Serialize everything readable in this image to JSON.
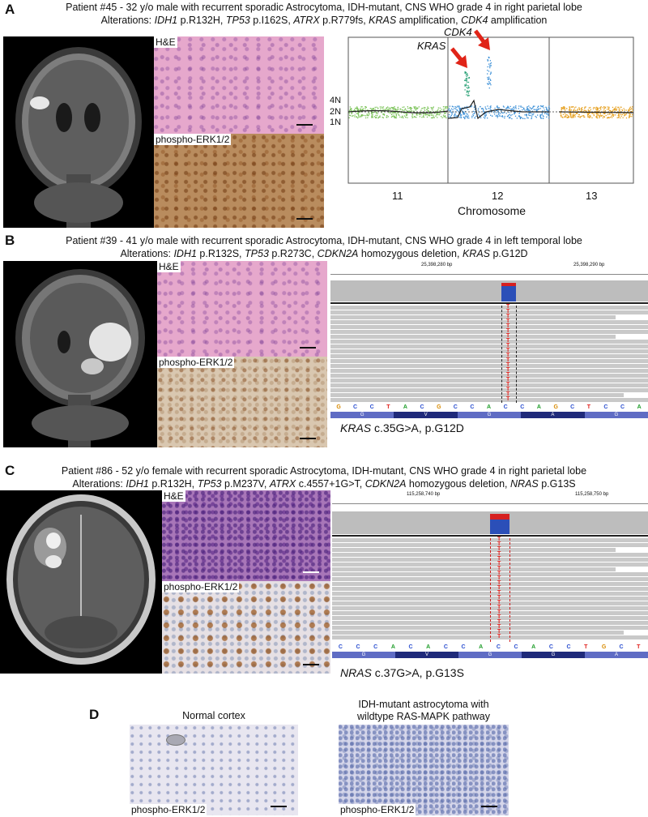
{
  "panelA": {
    "letter": "A",
    "title_line1": "Patient #45 - 32 y/o male with recurrent sporadic Astrocytoma, IDH-mutant, CNS WHO grade 4 in right parietal lobe",
    "alt_prefix": "Alterations: ",
    "alterations": [
      {
        "gene": "IDH1",
        "change": " p.R132H, "
      },
      {
        "gene": "TP53",
        "change": " p.I162S, "
      },
      {
        "gene": "ATRX",
        "change": " p.R779fs, "
      },
      {
        "gene": "KRAS",
        "change": " amplification, "
      },
      {
        "gene": "CDK4",
        "change": "  amplification"
      }
    ],
    "he_label": "H&E",
    "erk_label": "phospho-ERK1/2",
    "cn_labels": {
      "n4": "4N",
      "n2": "2N",
      "n1": "1N"
    },
    "chromosomes": [
      "11",
      "12",
      "13"
    ],
    "xlabel": "Chromosome",
    "annot_kras": "KRAS",
    "annot_cdk4": "CDK4"
  },
  "panelB": {
    "letter": "B",
    "title_line1": "Patient #39 - 41 y/o male with recurrent sporadic Astrocytoma, IDH-mutant, CNS WHO grade 4 in left temporal lobe",
    "alt_prefix": "Alterations: ",
    "alterations": [
      {
        "gene": "IDH1",
        "change": " p.R132S, "
      },
      {
        "gene": "TP53",
        "change": " p.R273C, "
      },
      {
        "gene": "CDKN2A",
        "change": " homozygous deletion, "
      },
      {
        "gene": "KRAS",
        "change": " p.G12D"
      }
    ],
    "he_label": "H&E",
    "erk_label": "phospho-ERK1/2",
    "coord1": "25,398,280 bp",
    "coord2": "25,398,290 bp",
    "mut_base": "T",
    "ref_seq": [
      "G",
      "C",
      "C",
      "T",
      "A",
      "C",
      "G",
      "C",
      "C",
      "A",
      "C",
      "C",
      "A",
      "G",
      "C",
      "T",
      "C",
      "C",
      "A"
    ],
    "aa_seq": [
      "G",
      "V",
      "G",
      "A",
      "G"
    ],
    "caption_gene": "KRAS",
    "caption_rest": " c.35G>A, p.G12D"
  },
  "panelC": {
    "letter": "C",
    "title_line1": "Patient #86 - 52 y/o female with recurrent sporadic Astrocytoma, IDH-mutant, CNS WHO grade 4 in right parietal lobe",
    "alt_prefix": "Alterations: ",
    "alterations": [
      {
        "gene": "IDH1",
        "change": " p.R132H, "
      },
      {
        "gene": "TP53",
        "change": " p.M237V, "
      },
      {
        "gene": "ATRX",
        "change": " c.4557+1G>T, "
      },
      {
        "gene": "CDKN2A",
        "change": "  homozygous deletion, "
      },
      {
        "gene": "NRAS",
        "change": " p.G13S"
      }
    ],
    "he_label": "H&E",
    "erk_label": "phospho-ERK1/2",
    "coord1": "115,258,740 bp",
    "coord2": "115,258,750 bp",
    "mut_base": "T",
    "ref_seq": [
      "C",
      "C",
      "C",
      "A",
      "C",
      "A",
      "C",
      "C",
      "A",
      "C",
      "C",
      "A",
      "C",
      "C",
      "T",
      "G",
      "C",
      "T"
    ],
    "aa_seq": [
      "G",
      "V",
      "G",
      "G",
      "A"
    ],
    "caption_gene": "NRAS",
    "caption_rest": " c.37G>A, p.G13S"
  },
  "panelD": {
    "letter": "D",
    "left_title": "Normal cortex",
    "right_title_line1": "IDH-mutant astrocytoma with",
    "right_title_line2": "wildtype RAS-MAPK pathway",
    "left_label": "phospho-ERK1/2",
    "right_label": "phospho-ERK1/2"
  },
  "colors": {
    "A": "#1f9e2a",
    "C": "#2b4fd0",
    "G": "#d88a00",
    "T": "#e0201c",
    "chr11": "#7cc35a",
    "chr12": "#3b8fd6",
    "chr13": "#e6a020",
    "arrow": "#e02418"
  }
}
